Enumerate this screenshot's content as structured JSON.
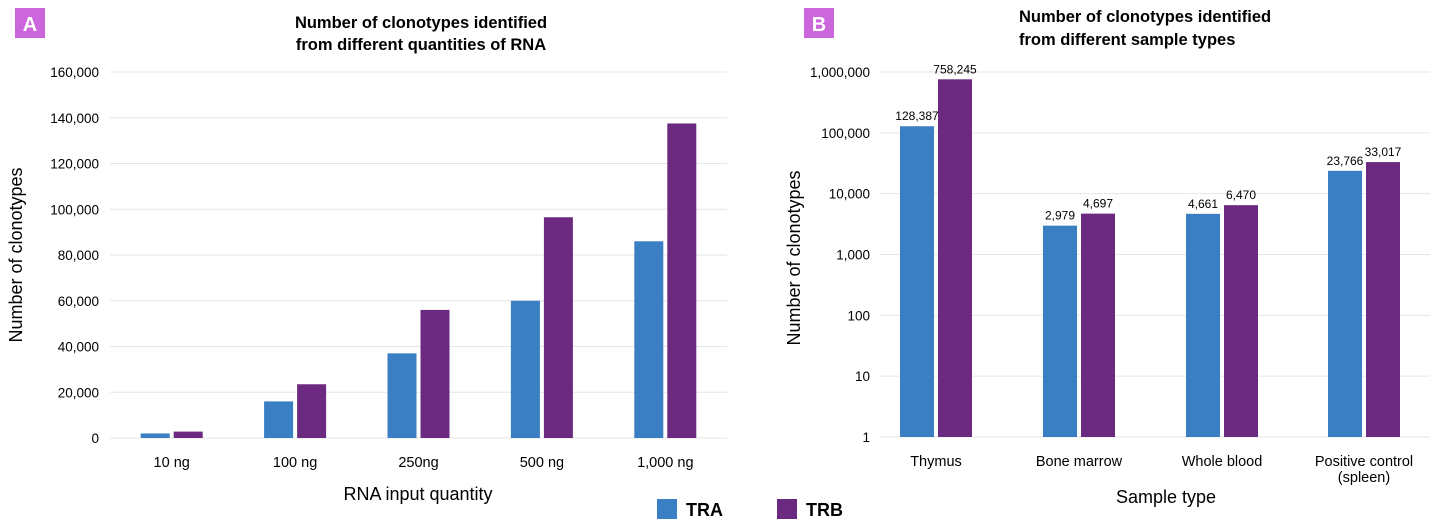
{
  "colors": {
    "TRA": "#3a7ec3",
    "TRB": "#6b2a7f",
    "badge": "#cc66dd"
  },
  "legend": [
    {
      "name": "TRA",
      "color": "#3a7ec3"
    },
    {
      "name": "TRB",
      "color": "#6b2a7f"
    }
  ],
  "chart_data": [
    {
      "panel": "A",
      "type": "bar",
      "title_lines": [
        "Number of clonotypes identified",
        "from different quantities of RNA"
      ],
      "xlabel": "RNA input quantity",
      "ylabel": "Number of clonotypes",
      "ylim": [
        0,
        160000
      ],
      "yticks": [
        0,
        20000,
        40000,
        60000,
        80000,
        100000,
        120000,
        140000,
        160000
      ],
      "ytick_labels": [
        "0",
        "20,000",
        "40,000",
        "60,000",
        "80,000",
        "100,000",
        "120,000",
        "140,000",
        "160,000"
      ],
      "categories": [
        "10 ng",
        "100 ng",
        "250ng",
        "500 ng",
        "1,000 ng"
      ],
      "series": [
        {
          "name": "TRA",
          "values": [
            2000,
            16000,
            37000,
            60000,
            86000
          ]
        },
        {
          "name": "TRB",
          "values": [
            2800,
            23500,
            56000,
            96500,
            137500
          ]
        }
      ],
      "grid": true
    },
    {
      "panel": "B",
      "type": "bar",
      "scale": "log",
      "title_lines": [
        "Number of clonotypes identified",
        "from different sample types"
      ],
      "xlabel": "Sample type",
      "ylabel": "Number of clonotypes",
      "ylim": [
        1,
        1000000
      ],
      "yticks": [
        1,
        10,
        100,
        1000,
        10000,
        100000,
        1000000
      ],
      "ytick_labels": [
        "1",
        "10",
        "100",
        "1,000",
        "10,000",
        "100,000",
        "1,000,000"
      ],
      "categories": [
        [
          "Thymus"
        ],
        [
          "Bone marrow"
        ],
        [
          "Whole blood"
        ],
        [
          "Positive control",
          "(spleen)"
        ]
      ],
      "series": [
        {
          "name": "TRA",
          "values": [
            128387,
            2979,
            4661,
            23766
          ],
          "labels": [
            "128,387",
            "2,979",
            "4,661",
            "23,766"
          ]
        },
        {
          "name": "TRB",
          "values": [
            758245,
            4697,
            6470,
            33017
          ],
          "labels": [
            "758,245",
            "4,697",
            "6,470",
            "33,017"
          ]
        }
      ],
      "grid": true
    }
  ]
}
